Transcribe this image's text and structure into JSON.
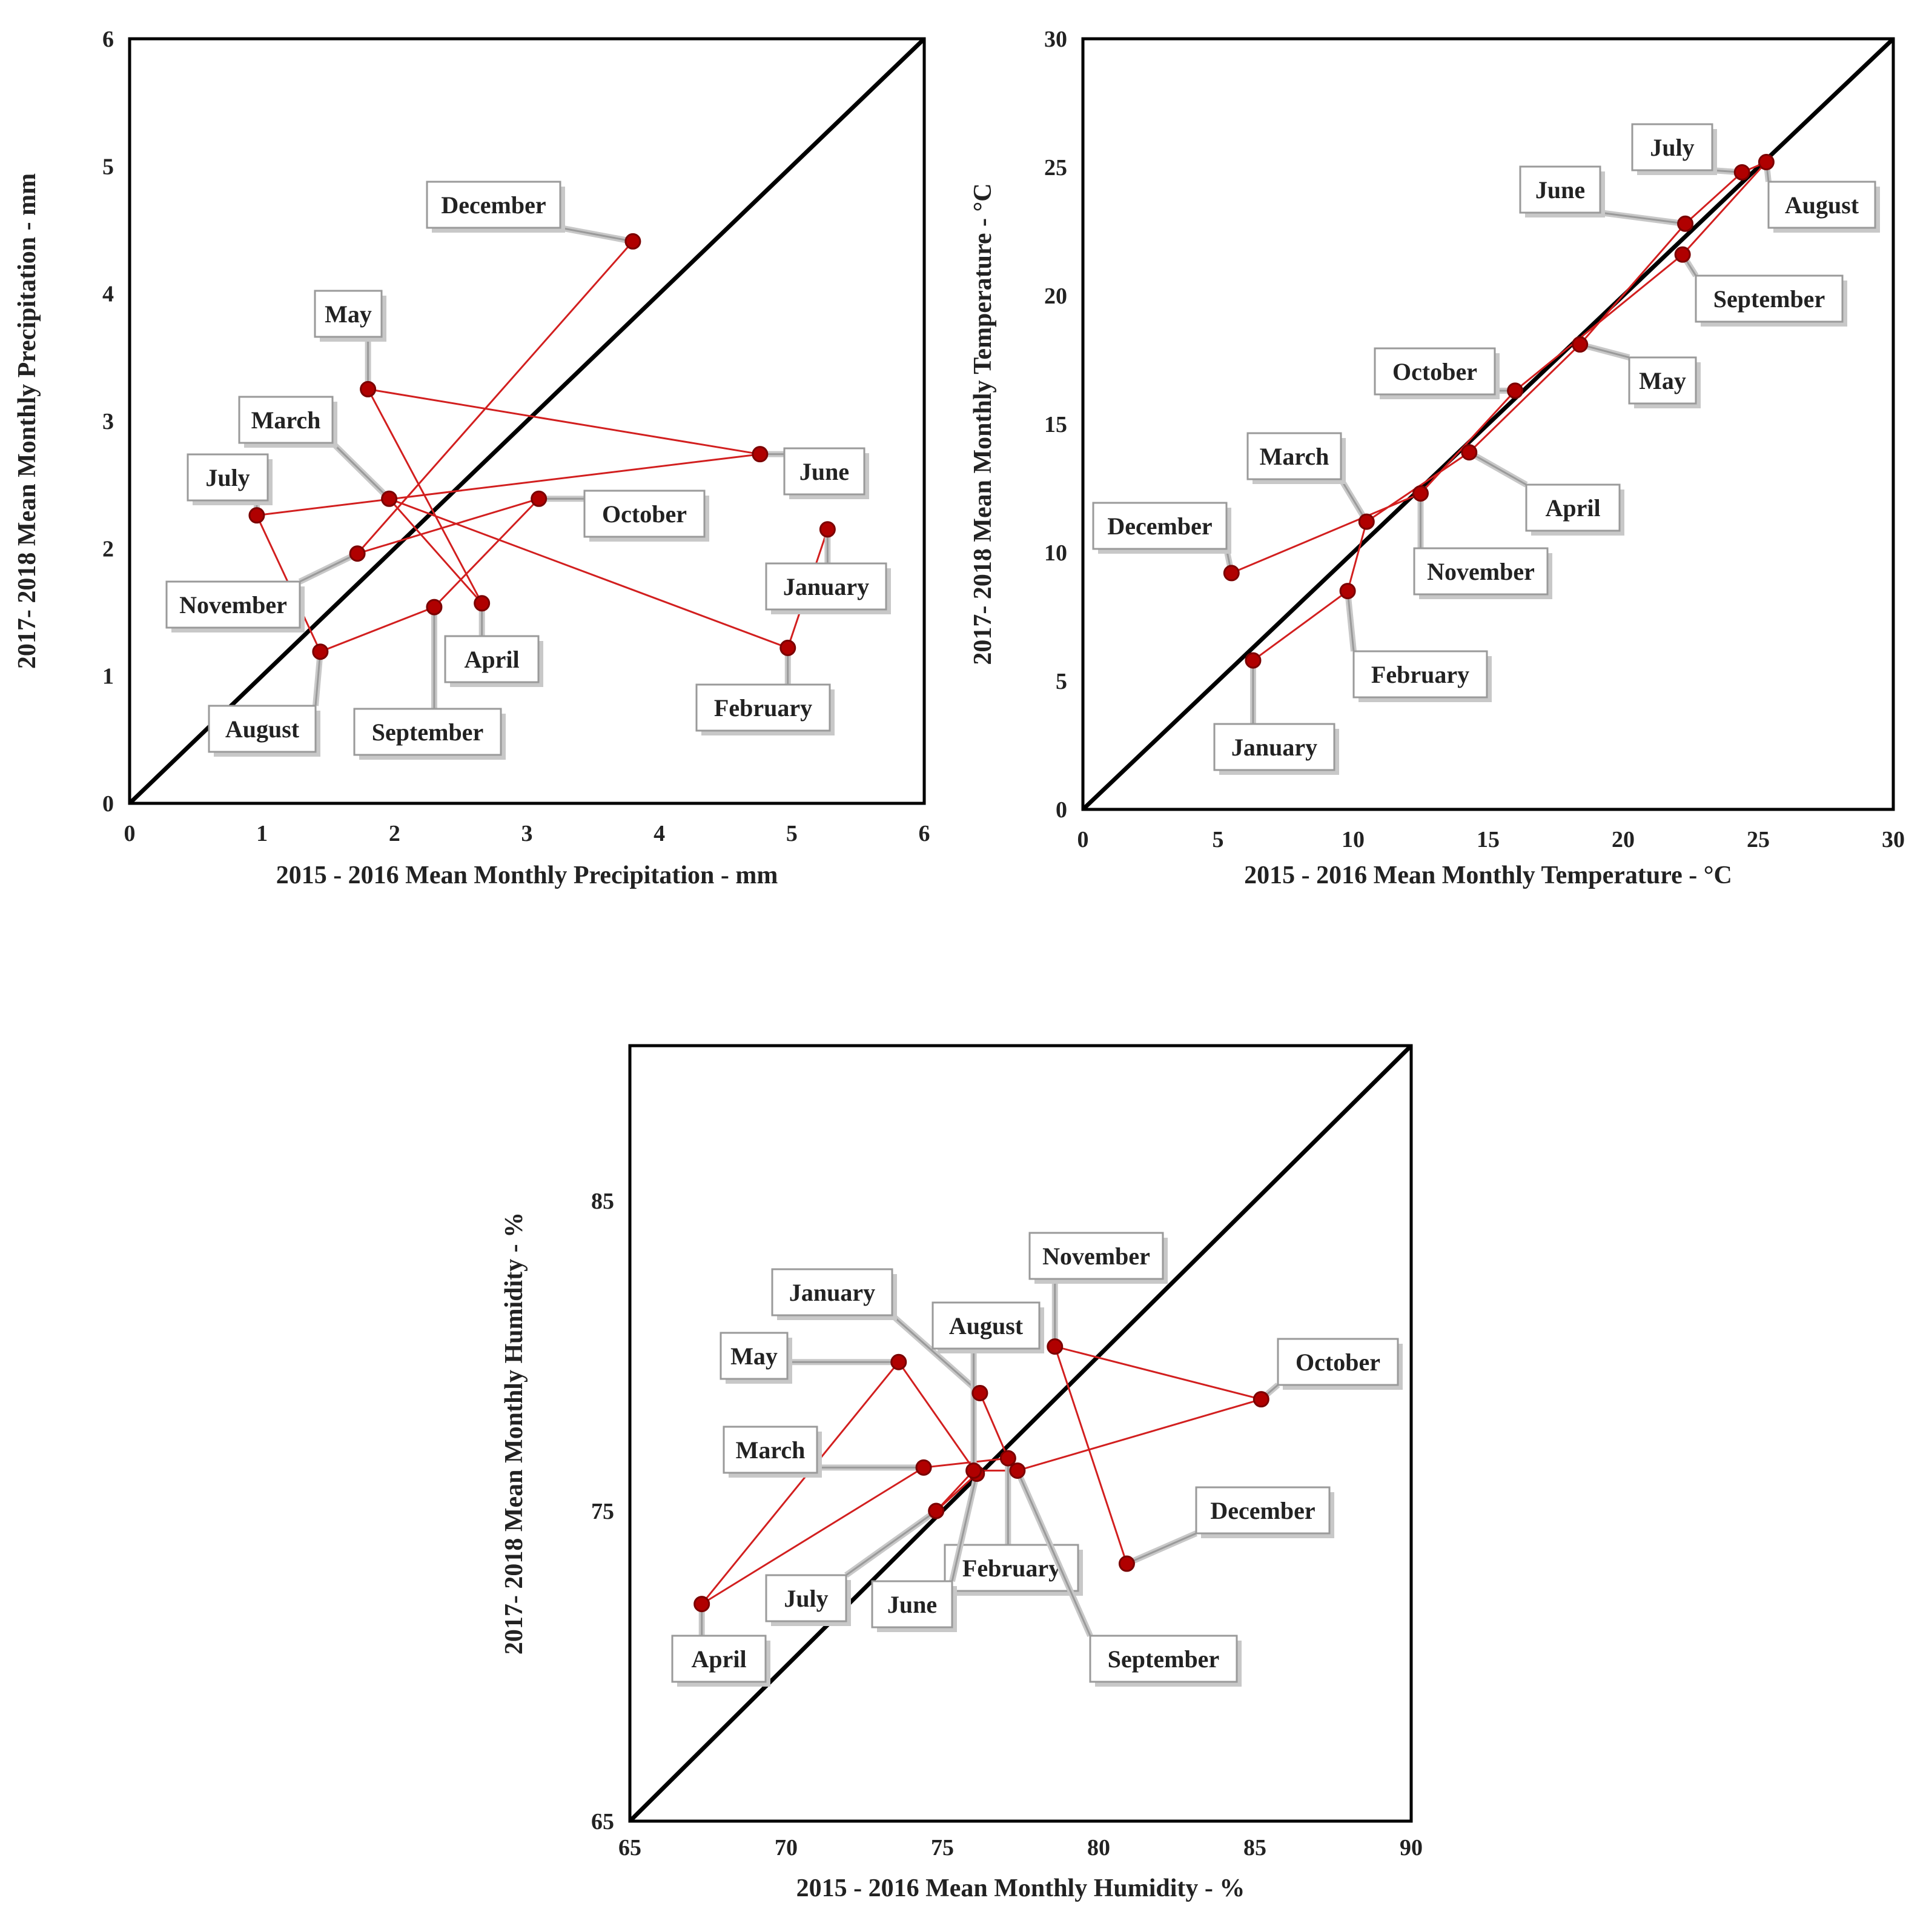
{
  "colors": {
    "series": "#d21f1f",
    "marker": "#b00000",
    "diagonal": "#000000",
    "frame": "#000000",
    "callout_border": "#9a9a9a",
    "callout_shadow": "#c8c8c8",
    "text": "#222222"
  },
  "chart_data": [
    {
      "type": "scatter",
      "title": "",
      "xlabel": "2015 - 2016 Mean Monthly Precipitation - mm",
      "ylabel": "2017- 2018 Mean Monthly Precipitation - mm",
      "xlim": [
        0,
        6
      ],
      "ylim": [
        0,
        6
      ],
      "xticks": [
        "0",
        "1",
        "2",
        "3",
        "4",
        "5",
        "6"
      ],
      "yticks": [
        "0",
        "1",
        "2",
        "3",
        "4",
        "5",
        "6"
      ],
      "grid": false,
      "reference_line": "y = x",
      "series": [
        {
          "name": "Monthly means",
          "points": [
            {
              "label": "January",
              "x": 5.27,
              "y": 2.15
            },
            {
              "label": "February",
              "x": 4.97,
              "y": 1.22
            },
            {
              "label": "March",
              "x": 1.96,
              "y": 2.39
            },
            {
              "label": "April",
              "x": 2.66,
              "y": 1.57
            },
            {
              "label": "May",
              "x": 1.8,
              "y": 3.25
            },
            {
              "label": "June",
              "x": 4.76,
              "y": 2.74
            },
            {
              "label": "July",
              "x": 0.96,
              "y": 2.26
            },
            {
              "label": "August",
              "x": 1.44,
              "y": 1.19
            },
            {
              "label": "September",
              "x": 2.3,
              "y": 1.54
            },
            {
              "label": "October",
              "x": 3.09,
              "y": 2.39
            },
            {
              "label": "November",
              "x": 1.72,
              "y": 1.96
            },
            {
              "label": "December",
              "x": 3.8,
              "y": 4.41
            }
          ]
        }
      ]
    },
    {
      "type": "scatter",
      "title": "",
      "xlabel": "2015 - 2016 Mean Monthly Temperature - °C",
      "ylabel": "2017- 2018 Mean Monthly Temperature - °C",
      "xlim": [
        0,
        30
      ],
      "ylim": [
        0,
        30
      ],
      "xticks": [
        "0",
        "5",
        "10",
        "15",
        "20",
        "25",
        "30"
      ],
      "yticks": [
        "0",
        "5",
        "10",
        "15",
        "20",
        "25",
        "30"
      ],
      "grid": false,
      "reference_line": "y = x",
      "series": [
        {
          "name": "Monthly means",
          "points": [
            {
              "label": "January",
              "x": 6.3,
              "y": 5.8
            },
            {
              "label": "February",
              "x": 9.8,
              "y": 8.5
            },
            {
              "label": "March",
              "x": 10.5,
              "y": 11.2
            },
            {
              "label": "April",
              "x": 14.3,
              "y": 13.9
            },
            {
              "label": "May",
              "x": 18.4,
              "y": 18.1
            },
            {
              "label": "June",
              "x": 22.3,
              "y": 22.8
            },
            {
              "label": "July",
              "x": 24.4,
              "y": 24.8
            },
            {
              "label": "August",
              "x": 25.3,
              "y": 25.2
            },
            {
              "label": "September",
              "x": 22.2,
              "y": 21.6
            },
            {
              "label": "October",
              "x": 16.0,
              "y": 16.3
            },
            {
              "label": "November",
              "x": 12.5,
              "y": 12.3
            },
            {
              "label": "December",
              "x": 5.5,
              "y": 9.2
            }
          ]
        }
      ]
    },
    {
      "type": "scatter",
      "title": "",
      "xlabel": "2015 - 2016 Mean Monthly Humidity - %",
      "ylabel": "2017- 2018 Mean Monthly Humidity - %",
      "xlim": [
        65,
        90
      ],
      "ylim": [
        65,
        90
      ],
      "xticks": [
        "65",
        "70",
        "75",
        "80",
        "85",
        "90"
      ],
      "yticks": [
        "65",
        "75",
        "85"
      ],
      "grid": false,
      "reference_line": "y = x",
      "series": [
        {
          "name": "Monthly means",
          "points": [
            {
              "label": "January",
              "x": 76.2,
              "y": 78.8
            },
            {
              "label": "February",
              "x": 77.1,
              "y": 76.7
            },
            {
              "label": "March",
              "x": 74.4,
              "y": 76.4
            },
            {
              "label": "April",
              "x": 67.3,
              "y": 72.0
            },
            {
              "label": "May",
              "x": 73.6,
              "y": 79.8
            },
            {
              "label": "June",
              "x": 76.1,
              "y": 76.2
            },
            {
              "label": "July",
              "x": 74.8,
              "y": 75.0
            },
            {
              "label": "August",
              "x": 76.0,
              "y": 76.3
            },
            {
              "label": "September",
              "x": 77.4,
              "y": 76.3
            },
            {
              "label": "October",
              "x": 85.2,
              "y": 78.6
            },
            {
              "label": "November",
              "x": 78.6,
              "y": 80.3
            },
            {
              "label": "December",
              "x": 80.9,
              "y": 73.3
            }
          ]
        }
      ]
    }
  ]
}
